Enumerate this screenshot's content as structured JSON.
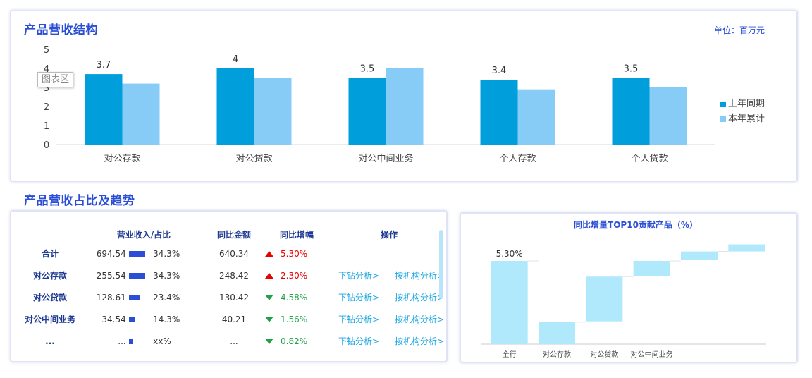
{
  "top": {
    "title": "产品营收结构",
    "unit": "单位：百万元",
    "tooltip": "图表区"
  },
  "chart_data": [
    {
      "type": "bar",
      "categories": [
        "对公存款",
        "对公贷款",
        "对公中间业务",
        "个人存款",
        "个人贷款"
      ],
      "series": [
        {
          "name": "上年同期",
          "values": [
            3.7,
            4,
            3.5,
            3.4,
            3.5
          ],
          "labels": [
            "3.7",
            "4",
            "3.5",
            "3.4",
            "3.5"
          ]
        },
        {
          "name": "本年累计",
          "values": [
            3.2,
            3.5,
            4.0,
            2.9,
            3.0
          ]
        }
      ],
      "yticks": [
        "0",
        "1",
        "2",
        "3",
        "4",
        "5"
      ],
      "ylim": [
        0,
        5
      ],
      "colors": [
        "#009fdb",
        "#87cbf7"
      ],
      "legend": "right"
    },
    {
      "type": "bar",
      "subtype": "waterfall",
      "title": "同比增量TOP10贡献产品（%）",
      "categories": [
        "全行",
        "对公存款",
        "对公贷款",
        "对公中间业务",
        "",
        ""
      ],
      "ranges": [
        [
          0,
          5.3
        ],
        [
          0,
          1.4
        ],
        [
          1.45,
          4.3
        ],
        [
          4.35,
          5.3
        ],
        [
          5.35,
          5.9
        ],
        [
          5.9,
          6.35
        ]
      ],
      "labels": [
        "5.30%",
        "",
        "",
        "",
        "",
        ""
      ],
      "colors": [
        "#b0e9fc"
      ]
    }
  ],
  "bottom": {
    "title": "产品营收占比及趋势",
    "table": {
      "headers": [
        "",
        "营业收入/占比",
        "同比金额",
        "同比增幅",
        "操作"
      ],
      "rows": [
        {
          "name": "合计",
          "amount": "694.54",
          "share": "34.3%",
          "share_value": 34.3,
          "yoy": "640.34",
          "growth": "5.30%",
          "trend": "up",
          "drill": "",
          "org": ""
        },
        {
          "name": "对公存款",
          "amount": "255.54",
          "share": "34.3%",
          "share_value": 34.3,
          "yoy": "248.42",
          "growth": "2.30%",
          "trend": "up",
          "drill": "下钻分析>",
          "org": "按机构分析>"
        },
        {
          "name": "对公贷款",
          "amount": "128.61",
          "share": "23.4%",
          "share_value": 23.4,
          "yoy": "130.42",
          "growth": "4.58%",
          "trend": "down",
          "drill": "下钻分析>",
          "org": "按机构分析>"
        },
        {
          "name": "对公中间业务",
          "amount": "34.54",
          "share": "14.3%",
          "share_value": 14.3,
          "yoy": "40.21",
          "growth": "1.56%",
          "trend": "down",
          "drill": "下钻分析>",
          "org": "按机构分析>"
        },
        {
          "name": "...",
          "amount": "...",
          "share": "xx%",
          "share_value": 8,
          "yoy": "...",
          "growth": "0.82%",
          "trend": "down",
          "drill": "下钻分析>",
          "org": "按机构分析>"
        }
      ]
    }
  }
}
